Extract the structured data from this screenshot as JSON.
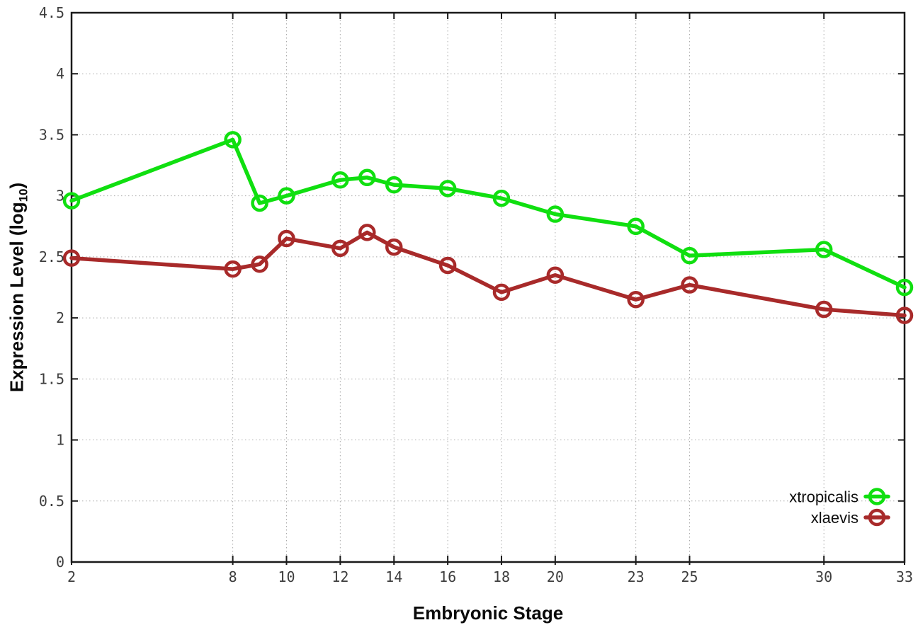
{
  "chart_data": {
    "type": "line",
    "title": "",
    "xlabel": "Embryonic Stage",
    "ylabel": "Expression Level (log10)",
    "ylabel_parts": {
      "main": "Expression Level (log",
      "sub": "10",
      "end": ")"
    },
    "xlim": [
      2,
      33
    ],
    "ylim": [
      0,
      4.5
    ],
    "grid": "dotted",
    "grid_color": "#a9a9a9",
    "border_color": "#1a1a1a",
    "tick_label_color": "#3d3d3d",
    "legend_position": "bottom-right-inside",
    "x": [
      2,
      8,
      9,
      10,
      12,
      13,
      14,
      16,
      18,
      20,
      23,
      25,
      30,
      33
    ],
    "xticks": [
      {
        "v": 2,
        "label": "2"
      },
      {
        "v": 8,
        "label": "8"
      },
      {
        "v": 10,
        "label": "10"
      },
      {
        "v": 12,
        "label": "12"
      },
      {
        "v": 14,
        "label": "14"
      },
      {
        "v": 16,
        "label": "16"
      },
      {
        "v": 18,
        "label": "18"
      },
      {
        "v": 20,
        "label": "20"
      },
      {
        "v": 23,
        "label": "23"
      },
      {
        "v": 25,
        "label": "25"
      },
      {
        "v": 30,
        "label": "30"
      },
      {
        "v": 33,
        "label": "33"
      }
    ],
    "yticks": [
      {
        "v": 0,
        "label": "0"
      },
      {
        "v": 0.5,
        "label": "0.5"
      },
      {
        "v": 1,
        "label": "1"
      },
      {
        "v": 1.5,
        "label": "1.5"
      },
      {
        "v": 2,
        "label": "2"
      },
      {
        "v": 2.5,
        "label": "2.5"
      },
      {
        "v": 3,
        "label": "3"
      },
      {
        "v": 3.5,
        "label": "3.5"
      },
      {
        "v": 4,
        "label": "4"
      },
      {
        "v": 4.5,
        "label": "4.5"
      }
    ],
    "series": [
      {
        "name": "xtropicalis",
        "color": "#10df10",
        "marker": "open-circle",
        "values": [
          2.96,
          3.46,
          2.94,
          3.0,
          3.13,
          3.15,
          3.09,
          3.06,
          2.98,
          2.85,
          2.75,
          2.51,
          2.56,
          2.25
        ]
      },
      {
        "name": "xlaevis",
        "color": "#a82a2a",
        "marker": "open-circle",
        "values": [
          2.49,
          2.4,
          2.44,
          2.65,
          2.57,
          2.7,
          2.58,
          2.43,
          2.21,
          2.35,
          2.15,
          2.27,
          2.07,
          2.02
        ]
      }
    ]
  }
}
